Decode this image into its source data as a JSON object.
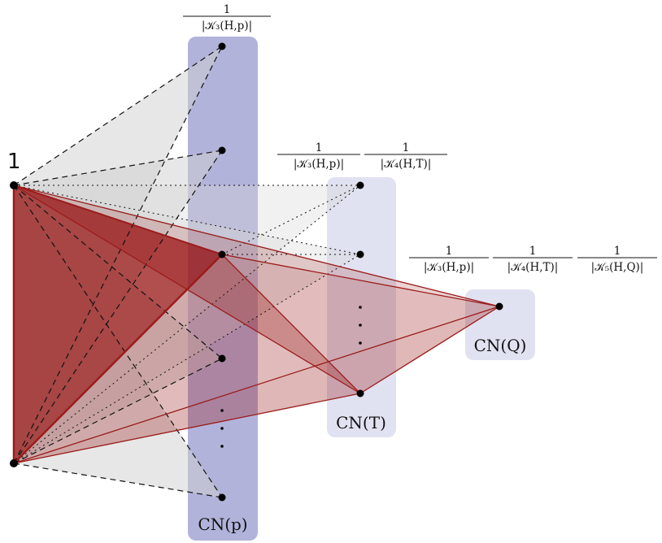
{
  "vertex_label": "1",
  "boxes": {
    "p": {
      "label": "CN(p)",
      "color": "#9c9ed1"
    },
    "t": {
      "label": "CN(T)",
      "color": "#dcddef"
    },
    "q": {
      "label": "CN(Q)",
      "color": "#dcddef"
    }
  },
  "annotations": {
    "a1": {
      "num": "1",
      "den": "|𝒦₃(H,p)|"
    },
    "a2": [
      {
        "num": "1",
        "den": "|𝒦₃(H,p)|"
      },
      {
        "num": "1",
        "den": "|𝒦₄(H,T)|"
      }
    ],
    "a3": [
      {
        "num": "1",
        "den": "|𝒦₃(H,p)|"
      },
      {
        "num": "1",
        "den": "|𝒦₄(H,T)|"
      },
      {
        "num": "1",
        "den": "|𝒦₅(H,Q)|"
      }
    ]
  },
  "colors": {
    "highlight": "#9b1c1c",
    "highlight_fill": "#9b1c1c",
    "gray_fill": "#d9d9d9",
    "edge": "#111111"
  }
}
